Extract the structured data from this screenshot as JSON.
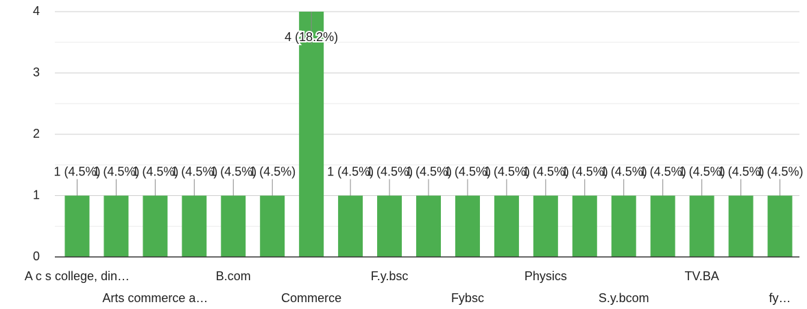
{
  "chart_data": {
    "type": "bar",
    "categories": [
      "A c s college, din…",
      null,
      "Arts commerce a…",
      null,
      "B.com",
      null,
      "Commerce",
      null,
      "F.y.bsc",
      null,
      "Fybsc",
      null,
      "Physics",
      null,
      "S.y.bcom",
      null,
      "TV.BA",
      null,
      "fy…"
    ],
    "values": [
      1,
      1,
      1,
      1,
      1,
      1,
      4,
      1,
      1,
      1,
      1,
      1,
      1,
      1,
      1,
      1,
      1,
      1,
      1
    ],
    "value_labels": [
      "1 (4.5%)",
      "1 (4.5%)",
      "1 (4.5%)",
      "1 (4.5%)",
      "1 (4.5%)",
      "1 (4.5%)",
      "4 (18.2%)",
      "1 (4.5%)",
      "1 (4.5%)",
      "1 (4.5%)",
      "1 (4.5%)",
      "1 (4.5%)",
      "1 (4.5%)",
      "1 (4.5%)",
      "1 (4.5%)",
      "1 (4.5%)",
      "1 (4.5%)",
      "1 (4.5%)",
      "1 (4.5%)"
    ],
    "color": "#4caf50",
    "ylim": [
      0,
      4
    ],
    "yticks": [
      0,
      1,
      2,
      3,
      4
    ],
    "grid": true
  }
}
